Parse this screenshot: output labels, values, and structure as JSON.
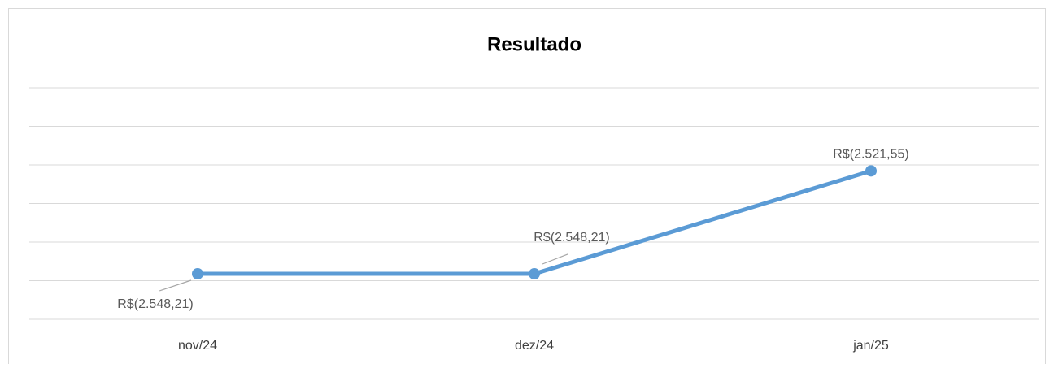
{
  "chart_data": {
    "type": "line",
    "title": "Resultado",
    "categories": [
      "nov/24",
      "dez/24",
      "jan/25"
    ],
    "series": [
      {
        "name": "Resultado",
        "color": "#5b9bd5",
        "values": [
          -2548.21,
          -2548.21,
          -2521.55
        ],
        "value_labels": [
          "R$(2.548,21)",
          "R$(2.548,21)",
          "R$(2.521,55)"
        ]
      }
    ],
    "ylim": [
      -2560,
      -2500
    ],
    "yticks": [
      -2560,
      -2550,
      -2540,
      -2530,
      -2520,
      -2510,
      -2500
    ],
    "grid": true
  }
}
